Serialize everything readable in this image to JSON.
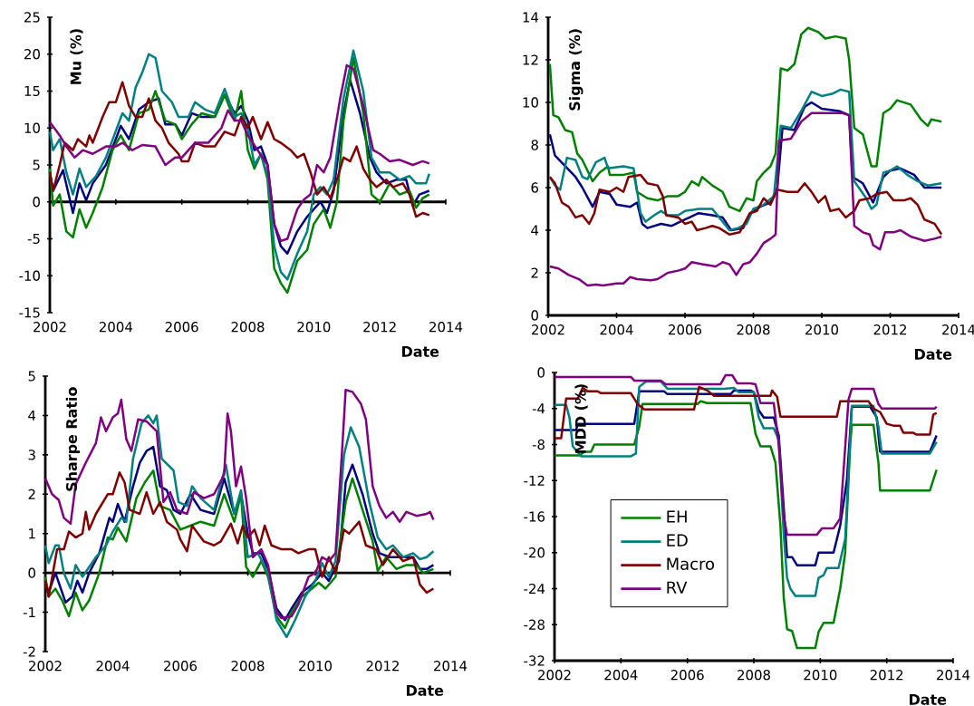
{
  "chart_data": [
    {
      "type": "line",
      "xlabel": "Date",
      "ylabel": "Mu (%)",
      "xlim": [
        2002,
        2014
      ],
      "xticks": [
        2002,
        2004,
        2006,
        2008,
        2010,
        2012,
        2014
      ],
      "ylim": [
        -15,
        25
      ],
      "yticks": [
        -15,
        -10,
        -5,
        0,
        5,
        10,
        15,
        20,
        25
      ],
      "marker": "none",
      "line_style": "solid",
      "series": [
        {
          "color": "#000080",
          "x": [
            2002.0,
            2002.1,
            2002.4,
            2002.7,
            2002.9,
            2003.1,
            2003.3,
            2003.7,
            2004.0,
            2004.15,
            2004.4,
            2004.7,
            2005.0,
            2005.3,
            2005.5,
            2005.8,
            2006.0,
            2006.3,
            2006.6,
            2007.0,
            2007.3,
            2007.6,
            2007.8,
            2008.0,
            2008.2,
            2008.4,
            2008.6,
            2008.8,
            2009.0,
            2009.2,
            2009.5,
            2009.8,
            2010.2,
            2010.4,
            2010.6,
            2010.9,
            2011.1,
            2011.4,
            2011.7,
            2011.9,
            2012.2,
            2012.5,
            2012.8,
            2013.0,
            2013.2,
            2013.5
          ],
          "values": [
            4,
            1.5,
            4.3,
            -1.5,
            2.5,
            0.2,
            2.5,
            5,
            8.5,
            10.3,
            8.5,
            12.5,
            13.5,
            14,
            10.5,
            10.5,
            9,
            12,
            11.5,
            11.5,
            14.5,
            12,
            13,
            11,
            7,
            7.5,
            5,
            -3,
            -6,
            -7,
            -4,
            -2,
            0,
            -1.5,
            1.5,
            12,
            16.5,
            12,
            6,
            4,
            2.5,
            3,
            3,
            -0.5,
            1,
            1.5
          ]
        },
        {
          "color": "#008000",
          "x": [
            2002.0,
            2002.1,
            2002.3,
            2002.5,
            2002.7,
            2002.9,
            2003.1,
            2003.3,
            2003.6,
            2003.9,
            2004.15,
            2004.4,
            2004.7,
            2005.0,
            2005.2,
            2005.5,
            2005.8,
            2006.0,
            2006.3,
            2006.6,
            2007.0,
            2007.3,
            2007.6,
            2007.8,
            2008.0,
            2008.2,
            2008.4,
            2008.6,
            2008.8,
            2009.0,
            2009.2,
            2009.5,
            2009.8,
            2010.0,
            2010.3,
            2010.5,
            2010.7,
            2010.9,
            2011.2,
            2011.5,
            2011.75,
            2012.0,
            2012.3,
            2012.6,
            2012.9,
            2013.1,
            2013.3,
            2013.5
          ],
          "values": [
            4.5,
            -0.5,
            1,
            -4,
            -4.8,
            -1,
            -3.5,
            -1.5,
            2,
            7,
            9,
            7,
            12,
            12.5,
            15,
            11,
            10.5,
            8.5,
            10.5,
            12,
            11.5,
            14.5,
            11,
            15,
            7,
            4.5,
            6.5,
            3,
            -9,
            -11,
            -12.3,
            -8,
            -6.5,
            -3,
            -1,
            -3.5,
            0,
            11,
            19.5,
            12,
            1,
            0,
            2.5,
            1,
            1.5,
            -0.8,
            0.5,
            1
          ]
        },
        {
          "color": "#008080",
          "x": [
            2002.0,
            2002.1,
            2002.3,
            2002.5,
            2002.7,
            2002.9,
            2003.1,
            2003.4,
            2003.7,
            2003.95,
            2004.2,
            2004.4,
            2004.6,
            2004.8,
            2005.0,
            2005.2,
            2005.4,
            2005.7,
            2005.9,
            2006.2,
            2006.4,
            2006.7,
            2007.0,
            2007.3,
            2007.6,
            2007.8,
            2008.0,
            2008.2,
            2008.4,
            2008.6,
            2008.8,
            2009.0,
            2009.2,
            2009.5,
            2009.8,
            2010.0,
            2010.2,
            2010.4,
            2010.6,
            2010.9,
            2011.2,
            2011.5,
            2011.75,
            2012.0,
            2012.3,
            2012.6,
            2012.9,
            2013.1,
            2013.4,
            2013.5
          ],
          "values": [
            9.5,
            7,
            8.5,
            4,
            1,
            4.5,
            2,
            3.5,
            6,
            9,
            12,
            11,
            15.5,
            17.5,
            20,
            19.5,
            15,
            13.5,
            11.5,
            11.5,
            13.5,
            12.5,
            12,
            15.3,
            11.5,
            12,
            10,
            5,
            6.5,
            3.5,
            -6,
            -9.5,
            -10.5,
            -7,
            -4,
            1,
            2,
            1,
            3,
            14,
            20.5,
            15,
            6,
            4,
            4,
            3,
            3.5,
            2.5,
            2.5,
            3.8
          ]
        },
        {
          "color": "#800000",
          "x": [
            2002.0,
            2002.1,
            2002.3,
            2002.45,
            2002.7,
            2002.85,
            2003.1,
            2003.2,
            2003.3,
            2003.6,
            2003.8,
            2004.0,
            2004.2,
            2004.4,
            2004.6,
            2004.8,
            2005.0,
            2005.2,
            2005.4,
            2005.6,
            2005.9,
            2006.0,
            2006.2,
            2006.4,
            2006.7,
            2007.0,
            2007.3,
            2007.6,
            2007.8,
            2008.0,
            2008.15,
            2008.4,
            2008.6,
            2008.8,
            2009.0,
            2009.3,
            2009.5,
            2009.7,
            2009.9,
            2010.1,
            2010.3,
            2010.5,
            2010.7,
            2010.9,
            2011.1,
            2011.3,
            2011.5,
            2011.7,
            2011.9,
            2012.2,
            2012.4,
            2012.7,
            2012.9,
            2013.1,
            2013.3,
            2013.5
          ],
          "values": [
            4,
            1.5,
            5,
            8,
            7,
            8.5,
            7.5,
            9,
            8,
            11.5,
            13.5,
            13.5,
            16.2,
            13,
            11.5,
            11.5,
            14,
            11,
            10,
            8,
            6.5,
            5.5,
            5.5,
            8,
            7.5,
            7.5,
            9.5,
            9,
            11.5,
            10,
            11.5,
            8.5,
            10.8,
            8.5,
            8,
            7,
            6,
            6.5,
            4,
            1,
            2,
            0.5,
            3,
            6,
            5.5,
            7.5,
            4.5,
            3,
            2,
            3,
            2,
            2.5,
            1,
            -2,
            -1.5,
            -1.8
          ]
        },
        {
          "color": "#800080",
          "x": [
            2002.0,
            2002.3,
            2002.5,
            2002.75,
            2003.0,
            2003.3,
            2003.7,
            2004.0,
            2004.2,
            2004.5,
            2004.8,
            2005.2,
            2005.5,
            2005.8,
            2006.0,
            2006.4,
            2006.8,
            2007.2,
            2007.4,
            2007.6,
            2007.8,
            2008.0,
            2008.3,
            2008.6,
            2008.8,
            2009.0,
            2009.2,
            2009.5,
            2009.7,
            2009.9,
            2010.1,
            2010.3,
            2010.5,
            2010.8,
            2011.0,
            2011.2,
            2011.5,
            2011.8,
            2012.0,
            2012.3,
            2012.6,
            2013.0,
            2013.3,
            2013.5
          ],
          "values": [
            10.8,
            9,
            7.5,
            6,
            7,
            6.5,
            7.5,
            7.5,
            8,
            7,
            7.7,
            7.5,
            5,
            6,
            6,
            8,
            8,
            10,
            12.4,
            11,
            11,
            9,
            7,
            5,
            -3,
            -5.3,
            -5,
            -1,
            0.3,
            1,
            5,
            4,
            6,
            14,
            18.5,
            18,
            13,
            7,
            6.5,
            5.5,
            5.7,
            5,
            5.5,
            5.2
          ]
        }
      ]
    },
    {
      "type": "line",
      "xlabel": "Date",
      "ylabel": "Sigma (%)",
      "xlim": [
        2002,
        2014
      ],
      "xticks": [
        2002,
        2004,
        2006,
        2008,
        2010,
        2012,
        2014
      ],
      "ylim": [
        0,
        14
      ],
      "yticks": [
        0,
        2,
        4,
        6,
        8,
        10,
        12,
        14
      ],
      "marker": "none",
      "line_style": "solid",
      "series": [
        {
          "color": "#000080",
          "x": [
            2002.05,
            2002.2,
            2002.5,
            2002.8,
            2003.0,
            2003.3,
            2003.5,
            2003.8,
            2004.0,
            2004.4,
            2004.6,
            2004.75,
            2004.9,
            2005.3,
            2005.6,
            2006.0,
            2006.4,
            2006.8,
            2007.1,
            2007.35,
            2007.7,
            2007.9,
            2008.2,
            2008.5,
            2008.7,
            2008.85,
            2009.2,
            2009.5,
            2009.7,
            2010.0,
            2010.5,
            2010.8,
            2010.9,
            2011.2,
            2011.5,
            2011.8,
            2012.0,
            2012.3,
            2012.7,
            2013.0,
            2013.5
          ],
          "values": [
            8.5,
            7.5,
            7,
            6.5,
            6,
            5.1,
            5.8,
            5.7,
            5.2,
            5.1,
            5.3,
            4.3,
            4.1,
            4.3,
            4.2,
            4.5,
            4.8,
            4.7,
            4.6,
            4,
            4.1,
            4.8,
            5.1,
            5.3,
            6,
            8.8,
            8.7,
            9.8,
            10,
            9.7,
            9.6,
            9.4,
            6.5,
            6.2,
            5.3,
            6.5,
            6.8,
            6.9,
            6.6,
            6,
            6
          ]
        },
        {
          "color": "#008000",
          "x": [
            2002.05,
            2002.15,
            2002.3,
            2002.5,
            2002.7,
            2002.85,
            2003.0,
            2003.3,
            2003.5,
            2003.75,
            2003.8,
            2004.2,
            2004.5,
            2004.6,
            2004.9,
            2005.2,
            2005.5,
            2005.8,
            2006.0,
            2006.2,
            2006.4,
            2006.5,
            2006.8,
            2007.1,
            2007.3,
            2007.6,
            2007.8,
            2008.0,
            2008.1,
            2008.3,
            2008.5,
            2008.65,
            2008.8,
            2009.0,
            2009.2,
            2009.4,
            2009.6,
            2009.9,
            2010.1,
            2010.4,
            2010.7,
            2010.8,
            2010.95,
            2011.2,
            2011.45,
            2011.6,
            2011.8,
            2012.0,
            2012.2,
            2012.6,
            2012.9,
            2013.1,
            2013.2,
            2013.5
          ],
          "values": [
            11.8,
            9.4,
            9.3,
            8.7,
            8.6,
            7.6,
            7.3,
            6.3,
            6.7,
            7,
            6.6,
            6.6,
            6.7,
            5.8,
            5.5,
            5.4,
            5.6,
            5.6,
            5.8,
            6.3,
            6.1,
            6.5,
            6.1,
            5.8,
            5.1,
            4.9,
            5.5,
            5.4,
            6.3,
            6.7,
            7,
            7.6,
            11.6,
            11.5,
            11.8,
            13.2,
            13.5,
            13.3,
            13,
            13.1,
            13,
            12,
            8.8,
            8.5,
            7,
            7,
            9.5,
            9.7,
            10.1,
            9.9,
            9.2,
            8.9,
            9.2,
            9.1
          ]
        },
        {
          "color": "#008080",
          "x": [
            2002.05,
            2002.2,
            2002.35,
            2002.55,
            2002.8,
            2003.0,
            2003.15,
            2003.4,
            2003.65,
            2003.75,
            2004.2,
            2004.5,
            2004.7,
            2004.85,
            2005.1,
            2005.3,
            2005.5,
            2005.8,
            2006.0,
            2006.4,
            2006.8,
            2007.0,
            2007.3,
            2007.55,
            2007.8,
            2008.0,
            2008.3,
            2008.6,
            2008.8,
            2009.1,
            2009.4,
            2009.7,
            2010.0,
            2010.3,
            2010.55,
            2010.8,
            2010.95,
            2011.3,
            2011.45,
            2011.6,
            2011.8,
            2012.0,
            2012.2,
            2012.5,
            2012.8,
            2013.1,
            2013.5
          ],
          "values": [
            6.5,
            6.1,
            5.9,
            7.4,
            7.3,
            6.5,
            6.4,
            7.2,
            7.4,
            6.9,
            7,
            6.9,
            4.8,
            4.4,
            4.7,
            4.9,
            4.7,
            4.7,
            4.9,
            5,
            5,
            4.6,
            4,
            4.1,
            4.3,
            5,
            5.2,
            5.6,
            8.9,
            8.8,
            9.6,
            10.5,
            10.3,
            10.4,
            10.6,
            10.5,
            6.3,
            5.5,
            5,
            5.2,
            6.7,
            6.8,
            7,
            6.6,
            6.3,
            6.1,
            6.2
          ]
        },
        {
          "color": "#800000",
          "x": [
            2002.05,
            2002.2,
            2002.4,
            2002.6,
            2002.8,
            2003.0,
            2003.2,
            2003.35,
            2003.5,
            2003.8,
            2004.0,
            2004.2,
            2004.35,
            2004.7,
            2004.9,
            2005.2,
            2005.35,
            2005.45,
            2005.8,
            2006.0,
            2006.2,
            2006.35,
            2006.6,
            2006.8,
            2007.0,
            2007.3,
            2007.6,
            2007.9,
            2008.1,
            2008.3,
            2008.5,
            2008.7,
            2009.0,
            2009.3,
            2009.5,
            2009.7,
            2009.9,
            2010.1,
            2010.25,
            2010.5,
            2010.7,
            2010.95,
            2011.1,
            2011.4,
            2011.6,
            2011.9,
            2012.1,
            2012.4,
            2012.6,
            2012.8,
            2013.0,
            2013.3,
            2013.5
          ],
          "values": [
            6.5,
            6.2,
            5.3,
            5.1,
            4.6,
            4.7,
            4.3,
            4.8,
            5.9,
            5.8,
            6,
            5.8,
            6.5,
            6.6,
            6.2,
            6.1,
            5.6,
            4.7,
            4.6,
            4.3,
            4.4,
            4,
            4.1,
            4.2,
            4.1,
            3.8,
            3.9,
            4.8,
            4.9,
            5.5,
            5.2,
            5.9,
            5.8,
            5.8,
            6.2,
            5.8,
            5.3,
            5.6,
            4.9,
            5,
            4.6,
            4.9,
            5.4,
            5.5,
            5.7,
            5.8,
            5.4,
            5.4,
            5.5,
            5.2,
            4.5,
            4.3,
            3.8
          ]
        },
        {
          "color": "#800080",
          "x": [
            2002.05,
            2002.3,
            2002.6,
            2002.9,
            2003.15,
            2003.4,
            2003.6,
            2004.0,
            2004.2,
            2004.4,
            2004.6,
            2005.0,
            2005.2,
            2005.5,
            2005.8,
            2006.0,
            2006.2,
            2006.5,
            2006.9,
            2007.1,
            2007.3,
            2007.5,
            2007.7,
            2007.9,
            2008.1,
            2008.3,
            2008.5,
            2008.65,
            2008.75,
            2009.1,
            2009.4,
            2009.7,
            2010.0,
            2010.3,
            2010.6,
            2010.8,
            2010.95,
            2011.2,
            2011.4,
            2011.5,
            2011.7,
            2011.85,
            2012.1,
            2012.3,
            2012.6,
            2013.0,
            2013.3,
            2013.5
          ],
          "values": [
            2.3,
            2.2,
            1.9,
            1.7,
            1.4,
            1.45,
            1.4,
            1.5,
            1.5,
            1.8,
            1.7,
            1.65,
            1.7,
            2,
            2.1,
            2.2,
            2.5,
            2.4,
            2.3,
            2.5,
            2.4,
            1.9,
            2.4,
            2.5,
            2.9,
            3.4,
            3.6,
            3.8,
            8.2,
            8.3,
            9.1,
            9.5,
            9.5,
            9.5,
            9.5,
            9.4,
            4.2,
            3.9,
            3.8,
            3.3,
            3.1,
            3.9,
            3.9,
            4,
            3.7,
            3.5,
            3.6,
            3.7
          ]
        }
      ]
    },
    {
      "type": "line",
      "xlabel": "Date",
      "ylabel": "Sharpe Ratio",
      "xlim": [
        2002,
        2014
      ],
      "xticks": [
        2002,
        2004,
        2006,
        2008,
        2010,
        2012,
        2014
      ],
      "ylim": [
        -2,
        5
      ],
      "yticks": [
        -2,
        -1,
        0,
        1,
        2,
        3,
        4,
        5
      ],
      "marker": "none",
      "line_style": "solid",
      "series": [
        {
          "color": "#000080",
          "x": [
            2002.0,
            2002.1,
            2002.3,
            2002.6,
            2002.8,
            2002.95,
            2003.1,
            2003.3,
            2003.6,
            2003.9,
            2004.0,
            2004.15,
            2004.35,
            2004.6,
            2004.8,
            2005.0,
            2005.2,
            2005.4,
            2005.6,
            2005.8,
            2006.0,
            2006.3,
            2006.6,
            2007.0,
            2007.3,
            2007.6,
            2007.8,
            2008.0,
            2008.15,
            2008.4,
            2008.6,
            2008.85,
            2009.1,
            2009.3,
            2009.6,
            2009.9,
            2010.2,
            2010.4,
            2010.7,
            2010.9,
            2011.1,
            2011.4,
            2011.7,
            2011.9,
            2012.2,
            2012.6,
            2012.9,
            2013.1,
            2013.3,
            2013.5
          ],
          "values": [
            -0.2,
            -0.5,
            0,
            -0.75,
            -0.6,
            -0.2,
            -0.5,
            0,
            0.5,
            1.4,
            1.3,
            1.75,
            1.3,
            2.2,
            2.8,
            3.1,
            3.2,
            2.2,
            2.1,
            1.6,
            1.5,
            2,
            1.6,
            1.5,
            2.4,
            1.5,
            2,
            1,
            0.5,
            0.5,
            0.1,
            -0.9,
            -1.2,
            -0.9,
            -0.5,
            -0.3,
            0,
            -0.2,
            0.3,
            2.3,
            2.75,
            2,
            1,
            0.5,
            0.4,
            0.4,
            0.4,
            0.1,
            0.1,
            0.2
          ]
        },
        {
          "color": "#008000",
          "x": [
            2002.0,
            2002.1,
            2002.3,
            2002.5,
            2002.7,
            2002.9,
            2003.1,
            2003.3,
            2003.6,
            2003.85,
            2004.0,
            2004.15,
            2004.4,
            2004.7,
            2004.95,
            2005.2,
            2005.4,
            2005.7,
            2006.0,
            2006.3,
            2006.6,
            2007.0,
            2007.3,
            2007.6,
            2007.8,
            2007.95,
            2008.15,
            2008.4,
            2008.6,
            2008.85,
            2009.1,
            2009.3,
            2009.6,
            2009.9,
            2010.1,
            2010.3,
            2010.6,
            2010.9,
            2011.1,
            2011.4,
            2011.7,
            2011.85,
            2012.1,
            2012.4,
            2012.7,
            2013.0,
            2013.2,
            2013.5
          ],
          "values": [
            -0.1,
            -0.6,
            -0.4,
            -0.7,
            -1.1,
            -0.5,
            -0.95,
            -0.7,
            0,
            0.9,
            0.85,
            1.15,
            0.8,
            1.9,
            2.3,
            2.6,
            1.7,
            1.6,
            1.1,
            1.2,
            1.3,
            1.2,
            2,
            1.3,
            2,
            0.15,
            -0.1,
            0.3,
            -0.1,
            -1.1,
            -1.4,
            -1,
            -0.6,
            -0.4,
            -0.25,
            -0.4,
            -0.1,
            1.8,
            2.4,
            1.6,
            0.8,
            0.05,
            0.4,
            0.1,
            0.2,
            0.2,
            0,
            0.1
          ]
        },
        {
          "color": "#008080",
          "x": [
            2002.0,
            2002.1,
            2002.3,
            2002.4,
            2002.55,
            2002.75,
            2002.9,
            2003.1,
            2003.5,
            2003.8,
            2004.0,
            2004.25,
            2004.4,
            2004.6,
            2004.85,
            2005.05,
            2005.2,
            2005.3,
            2005.45,
            2005.8,
            2005.95,
            2006.2,
            2006.35,
            2006.6,
            2007.0,
            2007.35,
            2007.6,
            2007.8,
            2008.0,
            2008.3,
            2008.6,
            2008.85,
            2009.15,
            2009.4,
            2009.7,
            2010.0,
            2010.2,
            2010.4,
            2010.6,
            2010.85,
            2011.05,
            2011.3,
            2011.6,
            2011.85,
            2012.1,
            2012.3,
            2012.6,
            2012.9,
            2013.1,
            2013.3,
            2013.5
          ],
          "values": [
            0.7,
            0.25,
            0.7,
            0.7,
            0,
            -0.4,
            0.2,
            -0.1,
            0.4,
            0.7,
            1.05,
            1.4,
            1.3,
            2.9,
            3.8,
            4,
            3.8,
            4,
            2.9,
            2.6,
            1.8,
            1.7,
            2.2,
            1.9,
            1.6,
            2.75,
            1.5,
            2.1,
            0.4,
            0.5,
            0,
            -1.2,
            -1.63,
            -1.2,
            -0.6,
            -0.2,
            0.25,
            -0.1,
            0.3,
            3,
            3.7,
            3.2,
            1.8,
            0.9,
            0.6,
            0.7,
            0.4,
            0.5,
            0.35,
            0.4,
            0.55
          ]
        },
        {
          "color": "#800000",
          "x": [
            2002.0,
            2002.1,
            2002.35,
            2002.55,
            2002.7,
            2002.9,
            2003.1,
            2003.2,
            2003.3,
            2003.5,
            2003.85,
            2004.0,
            2004.2,
            2004.35,
            2004.5,
            2004.8,
            2005.0,
            2005.2,
            2005.4,
            2005.6,
            2005.9,
            2006.0,
            2006.2,
            2006.35,
            2006.7,
            2007.0,
            2007.2,
            2007.5,
            2007.7,
            2007.85,
            2008.0,
            2008.2,
            2008.35,
            2008.5,
            2008.7,
            2009.0,
            2009.3,
            2009.5,
            2009.8,
            2010.0,
            2010.2,
            2010.4,
            2010.6,
            2010.85,
            2011.0,
            2011.3,
            2011.5,
            2011.8,
            2012.0,
            2012.3,
            2012.6,
            2012.9,
            2013.1,
            2013.3,
            2013.5
          ],
          "values": [
            -0.2,
            -0.6,
            0.6,
            0.6,
            1.05,
            0.9,
            1,
            1.55,
            1.1,
            1.5,
            2,
            2,
            2.55,
            2.3,
            1.6,
            1.5,
            2.05,
            1.5,
            1.8,
            1.3,
            1.1,
            0.85,
            0.55,
            1.2,
            0.8,
            0.7,
            0.8,
            1.25,
            0.75,
            1.2,
            0.9,
            1.1,
            0.7,
            1.2,
            0.7,
            0.6,
            0.6,
            0.5,
            0.6,
            0.6,
            -0.1,
            0.4,
            0,
            1.1,
            1,
            1.3,
            0.7,
            0.6,
            0.2,
            0.6,
            0.3,
            0.4,
            -0.3,
            -0.5,
            -0.4
          ]
        },
        {
          "color": "#800080",
          "x": [
            2002.0,
            2002.2,
            2002.4,
            2002.55,
            2002.75,
            2002.9,
            2003.2,
            2003.5,
            2003.65,
            2003.8,
            2004.0,
            2004.15,
            2004.25,
            2004.4,
            2004.55,
            2004.75,
            2005.0,
            2005.3,
            2005.5,
            2005.7,
            2005.9,
            2006.2,
            2006.4,
            2006.7,
            2007.0,
            2007.3,
            2007.4,
            2007.5,
            2007.65,
            2007.8,
            2007.95,
            2008.15,
            2008.4,
            2008.6,
            2008.85,
            2009.0,
            2009.3,
            2009.5,
            2009.8,
            2010.0,
            2010.2,
            2010.4,
            2010.6,
            2010.8,
            2010.9,
            2011.1,
            2011.35,
            2011.5,
            2011.7,
            2011.9,
            2012.1,
            2012.3,
            2012.5,
            2012.7,
            2013.0,
            2013.3,
            2013.4,
            2013.5
          ],
          "values": [
            2.4,
            2,
            1.85,
            1.4,
            1.25,
            2.25,
            2.8,
            3.3,
            3.95,
            3.6,
            3.95,
            4.05,
            4.4,
            3.4,
            3.1,
            3.9,
            3.85,
            3.6,
            1.8,
            2.05,
            1.6,
            1.5,
            2.05,
            1.9,
            2,
            2.5,
            4.05,
            3.6,
            2.2,
            2.7,
            1.9,
            0.4,
            0.6,
            0.2,
            -1,
            -1.15,
            -1.1,
            -0.8,
            -0.1,
            0,
            0.4,
            0.3,
            0.5,
            3.2,
            4.65,
            4.6,
            4.3,
            3.9,
            2.2,
            1.7,
            1.4,
            1.55,
            1.3,
            1.55,
            1.45,
            1.5,
            1.55,
            1.35
          ]
        }
      ]
    },
    {
      "type": "line",
      "xlabel": "Date",
      "ylabel": "MDD (%)",
      "xlim": [
        2002,
        2014
      ],
      "xticks": [
        2002,
        2004,
        2006,
        2008,
        2010,
        2012,
        2014
      ],
      "ylim": [
        -32,
        0
      ],
      "yticks": [
        -32,
        -28,
        -24,
        -20,
        -16,
        -12,
        -8,
        -4,
        0
      ],
      "marker": "none",
      "line_style": "solid",
      "legend": "left",
      "series": [
        {
          "color": "#000080",
          "x": [
            2002.0,
            2002.65,
            2002.7,
            2004.4,
            2004.55,
            2005.3,
            2005.4,
            2007.3,
            2007.4,
            2007.9,
            2008.0,
            2008.15,
            2008.3,
            2008.6,
            2008.75,
            2008.9,
            2009.0,
            2009.15,
            2009.3,
            2009.85,
            2009.95,
            2010.4,
            2010.6,
            2010.8,
            2010.95,
            2011.5,
            2011.7,
            2011.8,
            2013.3,
            2013.5
          ],
          "values": [
            -6.4,
            -6.4,
            -5.7,
            -5.7,
            -2.1,
            -2.1,
            -2.4,
            -2.4,
            -2,
            -2,
            -2.2,
            -4.2,
            -5,
            -5,
            -7,
            -15,
            -20.5,
            -20.5,
            -21.4,
            -21.4,
            -20,
            -20,
            -17,
            -12,
            -3.8,
            -3.8,
            -5,
            -8.8,
            -8.8,
            -7
          ]
        },
        {
          "name": "EH",
          "color": "#008000",
          "x": [
            2002.0,
            2002.75,
            2002.9,
            2003.1,
            2003.2,
            2004.4,
            2004.55,
            2004.65,
            2006.3,
            2006.4,
            2006.6,
            2007.9,
            2008.05,
            2008.2,
            2008.5,
            2008.65,
            2008.8,
            2008.9,
            2009.0,
            2009.15,
            2009.3,
            2009.85,
            2009.95,
            2010.1,
            2010.4,
            2010.6,
            2010.75,
            2010.9,
            2010.95,
            2011.6,
            2011.75,
            2011.8,
            2013.3,
            2013.5
          ],
          "values": [
            -9.2,
            -9.2,
            -8.8,
            -8.8,
            -8,
            -8,
            -6,
            -3.5,
            -3.5,
            -3.2,
            -3.4,
            -3.4,
            -6.8,
            -8.2,
            -8.2,
            -10,
            -17,
            -25,
            -28.5,
            -28.7,
            -30.6,
            -30.6,
            -28.8,
            -27.8,
            -27.8,
            -24,
            -20,
            -8,
            -5.8,
            -5.8,
            -10,
            -13.1,
            -13.1,
            -10.8
          ]
        },
        {
          "name": "ED",
          "color": "#008080",
          "x": [
            2002.0,
            2002.35,
            2002.45,
            2002.55,
            2002.8,
            2004.3,
            2004.45,
            2004.55,
            2004.75,
            2005.2,
            2005.4,
            2007.1,
            2007.4,
            2007.55,
            2008.0,
            2008.15,
            2008.3,
            2008.6,
            2008.75,
            2008.9,
            2009.0,
            2009.1,
            2009.25,
            2009.85,
            2009.95,
            2010.1,
            2010.2,
            2010.55,
            2010.75,
            2010.95,
            2011.6,
            2011.75,
            2011.85,
            2013.3,
            2013.5
          ],
          "values": [
            -3.6,
            -3.6,
            -5,
            -8.2,
            -9.3,
            -9.3,
            -9,
            -1.6,
            -1,
            -1,
            -1.8,
            -1.8,
            -1.7,
            -2.2,
            -2.2,
            -5,
            -6.2,
            -6.2,
            -7.5,
            -18,
            -22.8,
            -24,
            -24.8,
            -24.8,
            -22.8,
            -22.5,
            -21.7,
            -21.7,
            -18.5,
            -3.7,
            -3.7,
            -6,
            -9,
            -9,
            -7.7
          ]
        },
        {
          "name": "Macro",
          "color": "#800000",
          "x": [
            2002.0,
            2002.2,
            2002.35,
            2002.7,
            2002.85,
            2003.0,
            2003.3,
            2003.4,
            2004.3,
            2004.5,
            2004.7,
            2006.2,
            2006.35,
            2006.6,
            2006.8,
            2008.5,
            2008.55,
            2008.7,
            2008.8,
            2010.5,
            2010.6,
            2011.45,
            2011.6,
            2011.8,
            2012.0,
            2012.2,
            2012.4,
            2012.5,
            2012.8,
            2012.9,
            2013.3,
            2013.4,
            2013.5
          ],
          "values": [
            -7.3,
            -7.3,
            -2.9,
            -2.9,
            -1.7,
            -2.1,
            -2.1,
            -2.3,
            -2.3,
            -3.5,
            -4.1,
            -4.1,
            -1.6,
            -2,
            -2.6,
            -2.6,
            -2,
            -2.7,
            -4.9,
            -4.9,
            -3.2,
            -3.2,
            -4,
            -4.4,
            -5.7,
            -5.9,
            -5.9,
            -6.7,
            -6.7,
            -6.9,
            -6.9,
            -4.7,
            -4.5
          ]
        },
        {
          "name": "RV",
          "color": "#800080",
          "x": [
            2002.0,
            2004.3,
            2004.4,
            2005.2,
            2005.35,
            2007.0,
            2007.15,
            2007.35,
            2007.5,
            2007.9,
            2008.05,
            2008.2,
            2008.6,
            2008.75,
            2008.9,
            2009.0,
            2009.9,
            2010.05,
            2010.4,
            2010.6,
            2010.85,
            2010.95,
            2011.6,
            2011.75,
            2011.85,
            2013.45,
            2013.5
          ],
          "values": [
            -0.5,
            -0.5,
            -0.9,
            -0.9,
            -1.3,
            -1.3,
            -0.3,
            -0.3,
            -1.2,
            -1.2,
            -1.3,
            -3.4,
            -3.4,
            -8,
            -16,
            -18,
            -18,
            -17.3,
            -17.3,
            -16.2,
            -3,
            -1.8,
            -1.8,
            -3.5,
            -4,
            -4,
            -3.8
          ]
        }
      ]
    }
  ]
}
